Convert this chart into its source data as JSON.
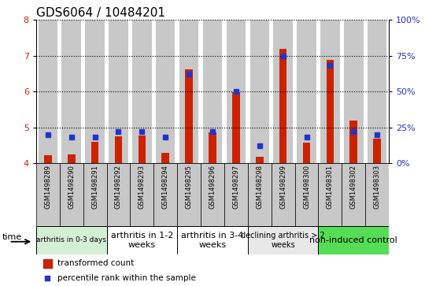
{
  "title": "GDS6064 / 10484201",
  "samples": [
    "GSM1498289",
    "GSM1498290",
    "GSM1498291",
    "GSM1498292",
    "GSM1498293",
    "GSM1498294",
    "GSM1498295",
    "GSM1498296",
    "GSM1498297",
    "GSM1498298",
    "GSM1498299",
    "GSM1498300",
    "GSM1498301",
    "GSM1498302",
    "GSM1498303"
  ],
  "red_values": [
    4.22,
    4.24,
    4.6,
    4.75,
    4.78,
    4.28,
    6.63,
    4.85,
    5.98,
    4.18,
    7.2,
    4.57,
    6.88,
    5.18,
    4.68
  ],
  "blue_values": [
    20,
    18,
    18,
    22,
    22,
    18,
    62,
    22,
    50,
    12,
    75,
    18,
    68,
    22,
    20
  ],
  "ylim_left": [
    4.0,
    8.0
  ],
  "ylim_right": [
    0,
    100
  ],
  "yticks_left": [
    4,
    5,
    6,
    7,
    8
  ],
  "yticks_right": [
    0,
    25,
    50,
    75,
    100
  ],
  "ytick_labels_right": [
    "0%",
    "25%",
    "50%",
    "75%",
    "100%"
  ],
  "groups": [
    {
      "label": "arthritis in 0-3 days",
      "start": 0,
      "end": 3,
      "color": "#d4f0d4",
      "fontsize": 6.5
    },
    {
      "label": "arthritis in 1-2\nweeks",
      "start": 3,
      "end": 6,
      "color": "#ffffff",
      "fontsize": 8
    },
    {
      "label": "arthritis in 3-4\nweeks",
      "start": 6,
      "end": 9,
      "color": "#ffffff",
      "fontsize": 8
    },
    {
      "label": "declining arthritis > 2\nweeks",
      "start": 9,
      "end": 12,
      "color": "#e8e8e8",
      "fontsize": 7
    },
    {
      "label": "non-induced control",
      "start": 12,
      "end": 15,
      "color": "#55dd55",
      "fontsize": 8
    }
  ],
  "red_color": "#cc2200",
  "blue_color": "#2233cc",
  "col_bg_color": "#c8c8c8",
  "plot_bg_color": "#ffffff",
  "xlabel_time": "time",
  "legend_red": "transformed count",
  "legend_blue": "percentile rank within the sample",
  "bar_width": 0.32,
  "blue_marker_size": 4.5
}
